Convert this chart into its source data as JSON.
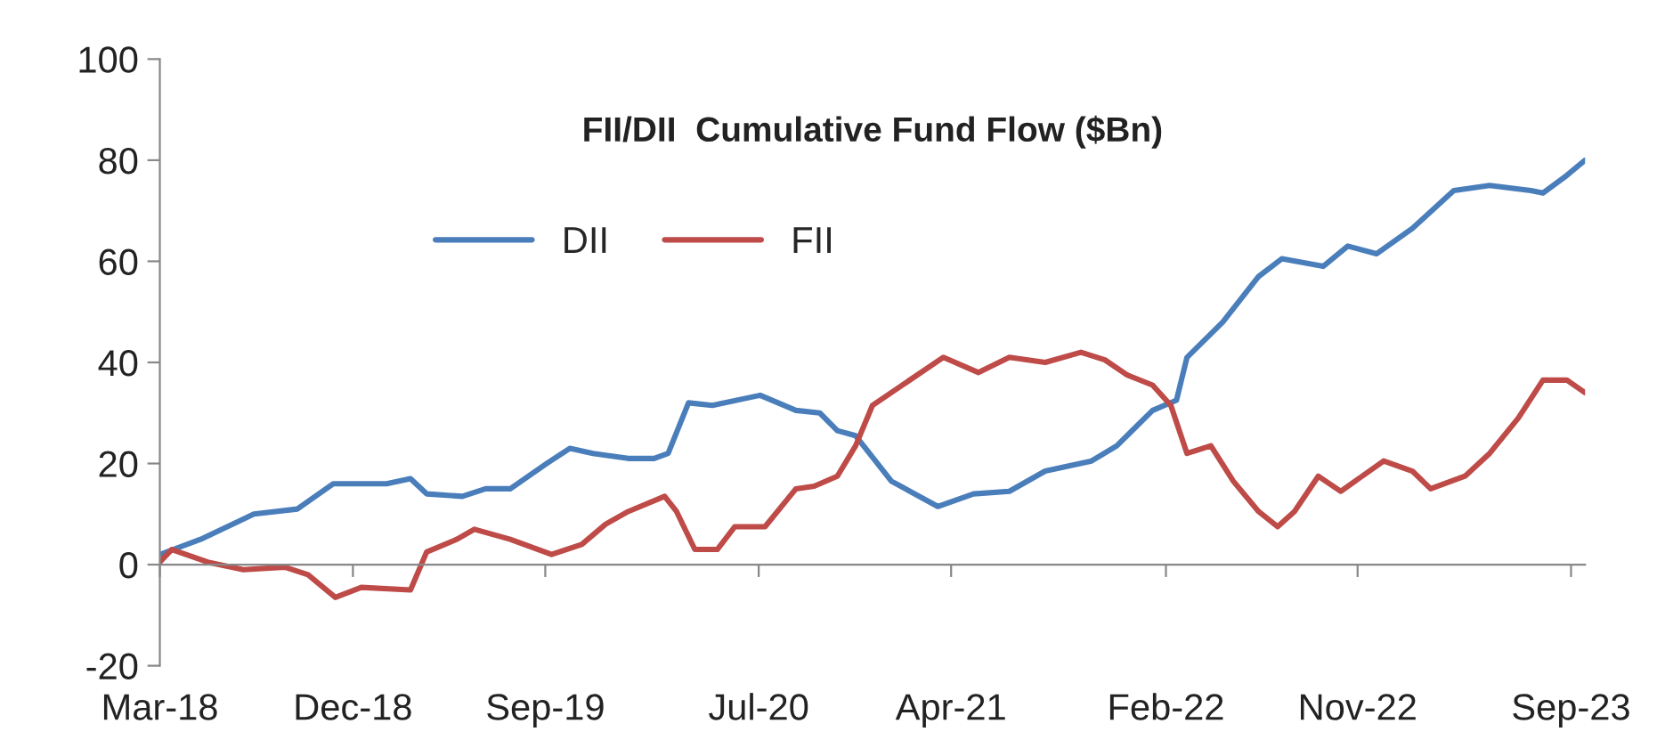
{
  "chart_data": {
    "type": "line",
    "title": "FII/DII  Cumulative Fund Flow ($Bn)",
    "xlim": [
      "2018-03-01",
      "2023-09-21"
    ],
    "ylim": [
      -20,
      100
    ],
    "yticks": [
      -20,
      0,
      20,
      40,
      60,
      80,
      100
    ],
    "xticks": [
      {
        "value": "2018-03-01",
        "label": "Mar-18"
      },
      {
        "value": "2018-12-01",
        "label": "Dec-18"
      },
      {
        "value": "2019-09-01",
        "label": "Sep-19"
      },
      {
        "value": "2020-07-01",
        "label": "Jul-20"
      },
      {
        "value": "2021-04-01",
        "label": "Apr-21"
      },
      {
        "value": "2022-02-01",
        "label": "Feb-22"
      },
      {
        "value": "2022-11-01",
        "label": "Nov-22"
      },
      {
        "value": "2023-09-01",
        "label": "Sep-23"
      }
    ],
    "legend": "top left",
    "marker": "none",
    "line_style": "solid",
    "series": [
      {
        "name": "DII",
        "color": "#4a7ebb",
        "x": [
          "2018-03-01",
          "2018-04-28",
          "2018-07-13",
          "2018-09-13",
          "2018-11-03",
          "2019-01-18",
          "2019-02-21",
          "2019-03-16",
          "2019-05-06",
          "2019-06-08",
          "2019-07-13",
          "2019-09-03",
          "2019-10-06",
          "2019-11-08",
          "2019-12-28",
          "2020-02-03",
          "2020-02-23",
          "2020-03-23",
          "2020-04-26",
          "2020-07-03",
          "2020-08-23",
          "2020-09-26",
          "2020-10-21",
          "2020-11-16",
          "2021-01-06",
          "2021-03-13",
          "2021-05-03",
          "2021-06-23",
          "2021-08-13",
          "2021-10-18",
          "2021-11-23",
          "2022-01-13",
          "2022-02-16",
          "2022-03-03",
          "2022-04-23",
          "2022-06-13",
          "2022-07-16",
          "2022-09-13",
          "2022-10-18",
          "2022-11-28",
          "2023-01-18",
          "2023-03-18",
          "2023-05-08",
          "2023-07-06",
          "2023-07-23",
          "2023-08-26",
          "2023-09-21"
        ],
        "values": [
          2,
          5,
          10,
          11,
          16,
          16,
          17,
          14,
          13.5,
          15,
          15,
          20,
          23,
          22,
          21,
          21,
          22,
          32,
          31.5,
          33.5,
          30.5,
          30,
          26.5,
          25.5,
          16.5,
          11.5,
          14,
          14.5,
          18.5,
          20.5,
          23.5,
          30.5,
          32.5,
          41,
          48,
          57,
          60.5,
          59,
          63,
          61.5,
          66.5,
          74,
          75,
          74,
          73.5,
          77,
          80
        ]
      },
      {
        "name": "FII",
        "color": "#be4b48",
        "x": [
          "2018-03-01",
          "2018-03-18",
          "2018-05-08",
          "2018-06-28",
          "2018-08-26",
          "2018-09-28",
          "2018-11-06",
          "2018-12-13",
          "2019-02-21",
          "2019-03-16",
          "2019-04-28",
          "2019-05-23",
          "2019-07-13",
          "2019-09-10",
          "2019-10-23",
          "2019-11-26",
          "2019-12-28",
          "2020-02-18",
          "2020-03-06",
          "2020-04-01",
          "2020-05-03",
          "2020-05-28",
          "2020-07-10",
          "2020-08-23",
          "2020-09-18",
          "2020-10-21",
          "2020-11-16",
          "2020-12-10",
          "2021-02-01",
          "2021-03-21",
          "2021-05-10",
          "2021-06-23",
          "2021-08-13",
          "2021-10-03",
          "2021-11-06",
          "2021-12-08",
          "2022-01-13",
          "2022-02-08",
          "2022-03-03",
          "2022-04-06",
          "2022-05-08",
          "2022-06-13",
          "2022-07-10",
          "2022-08-03",
          "2022-09-06",
          "2022-10-08",
          "2022-12-08",
          "2023-01-18",
          "2023-02-13",
          "2023-04-03",
          "2023-05-08",
          "2023-06-18",
          "2023-07-23",
          "2023-08-26",
          "2023-09-21"
        ],
        "values": [
          0.5,
          3,
          0.5,
          -1,
          -0.5,
          -2,
          -6.5,
          -4.5,
          -5,
          2.5,
          5,
          7,
          5,
          2,
          4,
          8,
          10.5,
          13.5,
          10.5,
          3,
          3,
          7.5,
          7.5,
          15,
          15.5,
          17.5,
          23.5,
          31.5,
          36.5,
          41,
          38,
          41,
          40,
          42,
          40.5,
          37.5,
          35.5,
          31.5,
          22,
          23.5,
          16.5,
          10.5,
          7.5,
          10.5,
          17.5,
          14.5,
          20.5,
          18.5,
          15,
          17.5,
          22,
          29,
          36.5,
          36.5,
          34
        ]
      }
    ]
  }
}
